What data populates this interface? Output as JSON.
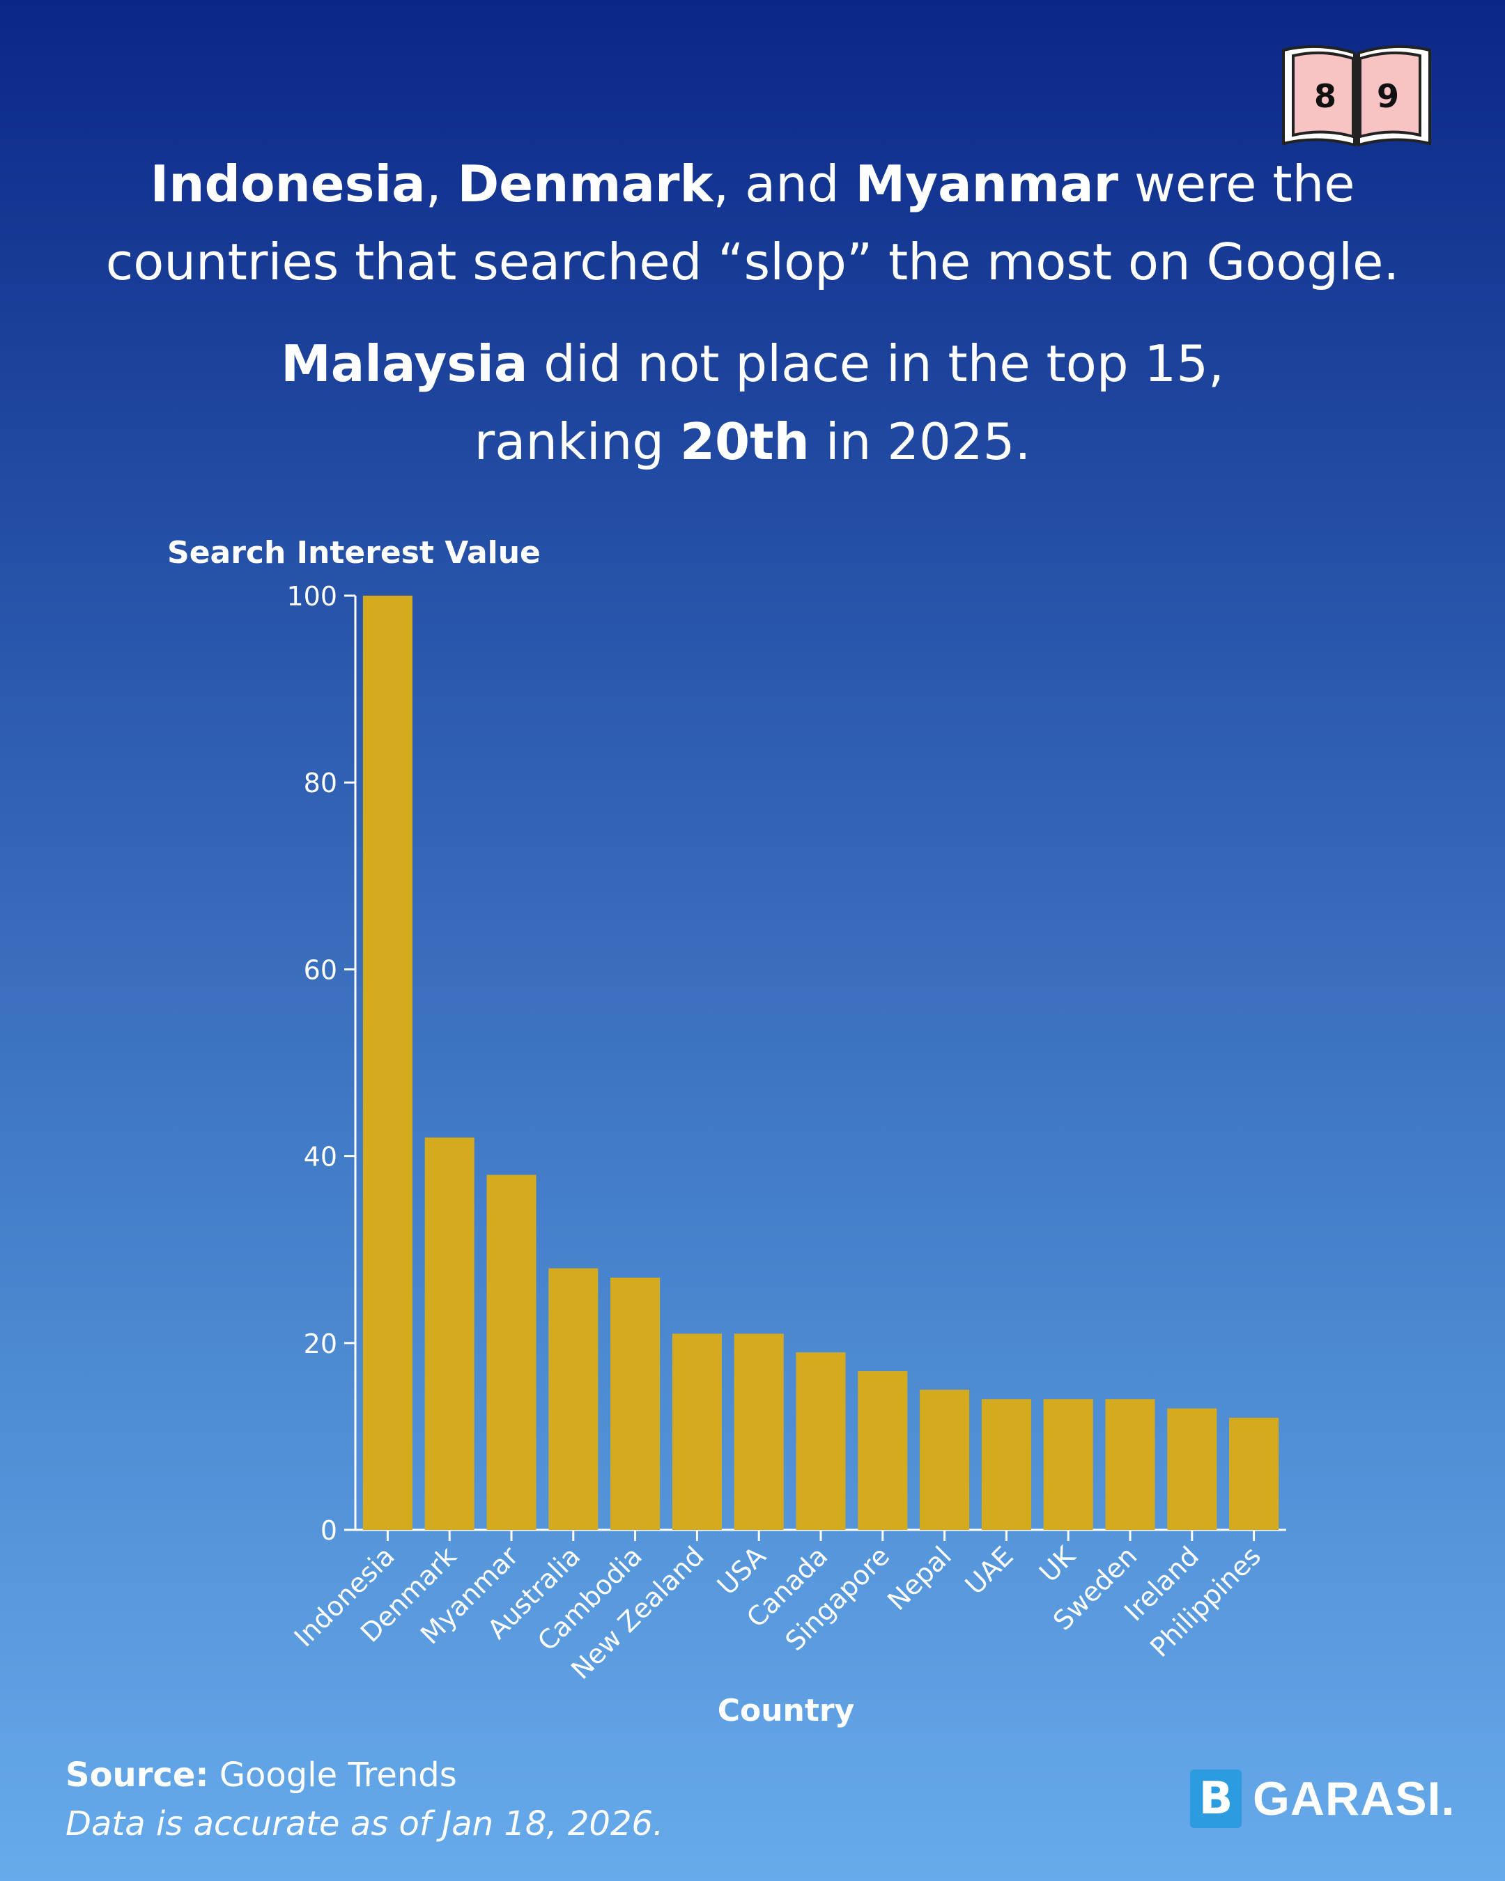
{
  "headline": {
    "line1": {
      "c1": "Indonesia",
      "s1": ", ",
      "c2": "Denmark",
      "s2": ", and ",
      "c3": "Myanmar",
      "s3": " were the"
    },
    "line2": "countries that searched “slop” the most on Google.",
    "line3": {
      "c1": "Malaysia",
      "s1": " did not place in the top 15,"
    },
    "line4": {
      "s0": "ranking ",
      "rank": "20th",
      "s1": " in 2025."
    }
  },
  "book_icon": {
    "left_page": "8",
    "right_page": "9",
    "icon": "open-book-icon"
  },
  "chart_data": {
    "type": "bar",
    "ylabel": "Search Interest Value",
    "xlabel": "Country",
    "ylim": [
      0,
      100
    ],
    "yticks": [
      0,
      20,
      40,
      60,
      80,
      100
    ],
    "categories": [
      "Indonesia",
      "Denmark",
      "Myanmar",
      "Australia",
      "Cambodia",
      "New Zealand",
      "USA",
      "Canada",
      "Singapore",
      "Nepal",
      "UAE",
      "UK",
      "Sweden",
      "Ireland",
      "Philippines"
    ],
    "values": [
      100,
      42,
      38,
      28,
      27,
      21,
      21,
      19,
      17,
      15,
      14,
      14,
      14,
      13,
      12
    ],
    "bar_color": "#d4ab1f",
    "grid": false
  },
  "footer": {
    "source_label": "Source:",
    "source_value": " Google Trends",
    "accuracy": "Data is accurate as of Jan 18, 2026."
  },
  "brand": {
    "mark": "B",
    "name": "GARASI."
  }
}
